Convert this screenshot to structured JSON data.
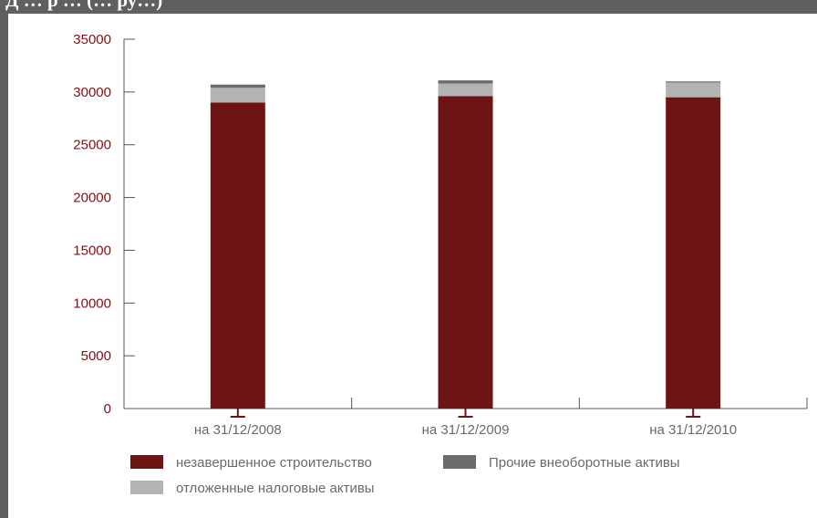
{
  "title": {
    "text": "Д … р … (… ру…)"
  },
  "colors": {
    "background": "#5f5f5f",
    "panel": "#ffffff",
    "axis": "#555555",
    "tick_text": "#7a1416",
    "category_text": "#6a6a6a"
  },
  "chart_data": {
    "type": "bar",
    "stacked": true,
    "categories": [
      "на 31/12/2008",
      "на 31/12/2009",
      "на 31/12/2010"
    ],
    "series": [
      {
        "name": "незавершенное строительство",
        "color": "#6f1414",
        "values": [
          29000,
          29600,
          29500
        ]
      },
      {
        "name": "отложенные налоговые активы",
        "color": "#b3b3b3",
        "values": [
          1400,
          1200,
          1400
        ]
      },
      {
        "name": "Прочие внеоборотные активы",
        "color": "#6b6b6b",
        "values": [
          300,
          300,
          100
        ]
      }
    ],
    "ylim": [
      0,
      35000
    ],
    "yticks": [
      0,
      5000,
      10000,
      15000,
      20000,
      25000,
      30000,
      35000
    ],
    "xlabel": "",
    "ylabel": "",
    "grid": false,
    "legend_position": "bottom"
  }
}
